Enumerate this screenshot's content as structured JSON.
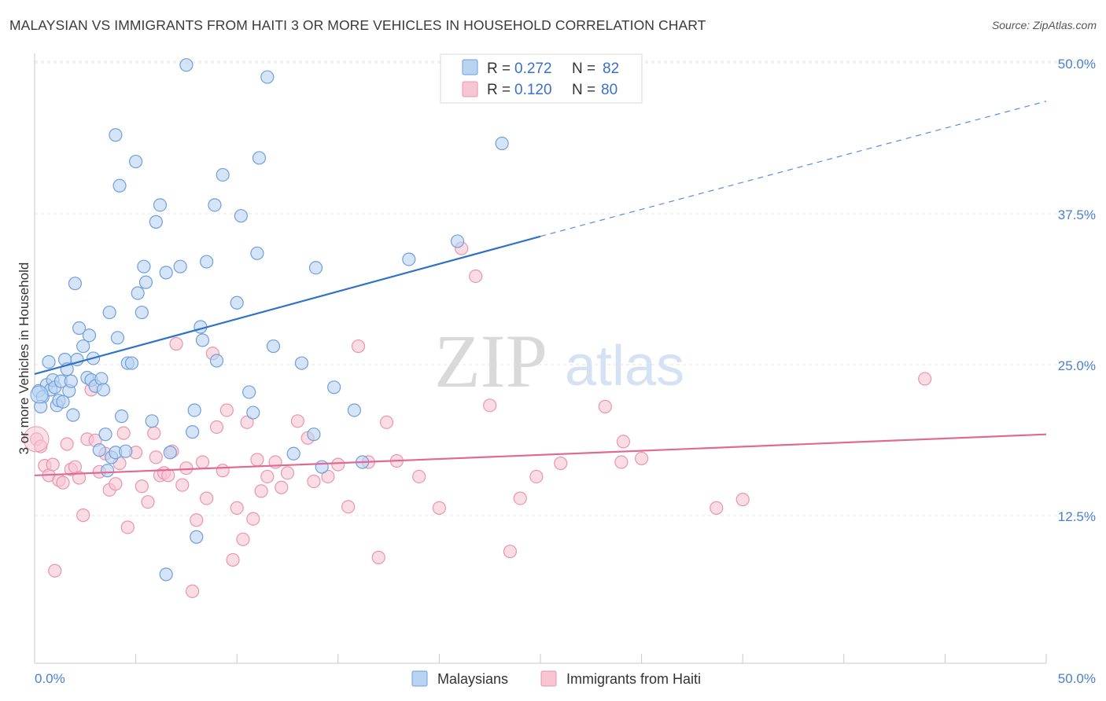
{
  "title": "MALAYSIAN VS IMMIGRANTS FROM HAITI 3 OR MORE VEHICLES IN HOUSEHOLD CORRELATION CHART",
  "source": "Source: ZipAtlas.com",
  "watermark": {
    "part1": "ZIP",
    "part2": "atlas"
  },
  "colors": {
    "blue_fill": "#b9d3f2",
    "blue_stroke": "#6f9fdc",
    "blue_line": "#2f72c9",
    "pink_fill": "#f7c5d4",
    "pink_stroke": "#e995ae",
    "pink_line": "#e06a94",
    "axis_text": "#4a7fd0",
    "grid": "#e3e3e3"
  },
  "legend": {
    "r_label": "R =",
    "n_label": "N =",
    "rows": [
      {
        "r": "0.272",
        "n": "82"
      },
      {
        "r": "0.120",
        "n": "80"
      }
    ]
  },
  "chart_data": {
    "type": "scatter",
    "title": "MALAYSIAN VS IMMIGRANTS FROM HAITI 3 OR MORE VEHICLES IN HOUSEHOLD CORRELATION CHART",
    "xlabel": "",
    "ylabel": "3 or more Vehicles in Household",
    "xlim": [
      0,
      50
    ],
    "ylim": [
      0,
      50
    ],
    "x_tick_labels": [
      "0.0%",
      "50.0%"
    ],
    "y_ticks": [
      12.5,
      25.0,
      37.5,
      50.0
    ],
    "y_tick_labels": [
      "12.5%",
      "25.0%",
      "37.5%",
      "50.0%"
    ],
    "grid": true,
    "legend_position": "top-center",
    "series": [
      {
        "name": "Malaysians",
        "r": 0.272,
        "n": 82,
        "trend": {
          "x0": 0,
          "y0": 23.9,
          "x1": 25,
          "y1": 35.3,
          "dashed_to_x": 50,
          "dashed_to_y": 46.5
        },
        "points": [
          [
            0.2,
            22.5
          ],
          [
            0.4,
            22.0
          ],
          [
            0.6,
            23.0
          ],
          [
            0.7,
            24.9
          ],
          [
            0.8,
            22.6
          ],
          [
            0.9,
            23.4
          ],
          [
            1.0,
            22.8
          ],
          [
            1.1,
            21.3
          ],
          [
            1.2,
            21.7
          ],
          [
            1.3,
            23.3
          ],
          [
            1.4,
            21.6
          ],
          [
            1.5,
            25.1
          ],
          [
            1.6,
            24.3
          ],
          [
            1.7,
            22.5
          ],
          [
            1.8,
            23.3
          ],
          [
            2.0,
            31.4
          ],
          [
            2.1,
            25.1
          ],
          [
            2.2,
            27.7
          ],
          [
            2.4,
            26.2
          ],
          [
            2.6,
            23.6
          ],
          [
            2.7,
            27.1
          ],
          [
            2.8,
            23.4
          ],
          [
            2.9,
            25.2
          ],
          [
            3.0,
            22.9
          ],
          [
            3.2,
            17.6
          ],
          [
            3.3,
            23.5
          ],
          [
            3.4,
            22.6
          ],
          [
            3.5,
            18.9
          ],
          [
            3.7,
            29.0
          ],
          [
            3.8,
            17.0
          ],
          [
            4.0,
            17.4
          ],
          [
            4.0,
            43.7
          ],
          [
            4.1,
            26.9
          ],
          [
            4.2,
            39.5
          ],
          [
            4.3,
            20.4
          ],
          [
            4.5,
            17.5
          ],
          [
            4.6,
            24.8
          ],
          [
            4.8,
            24.8
          ],
          [
            5.0,
            41.5
          ],
          [
            5.1,
            30.6
          ],
          [
            5.3,
            29.0
          ],
          [
            5.4,
            32.8
          ],
          [
            5.5,
            31.5
          ],
          [
            5.8,
            20.0
          ],
          [
            6.0,
            36.5
          ],
          [
            6.2,
            37.9
          ],
          [
            6.5,
            32.3
          ],
          [
            6.5,
            7.3
          ],
          [
            6.7,
            17.4
          ],
          [
            7.2,
            32.8
          ],
          [
            7.5,
            49.5
          ],
          [
            7.8,
            19.1
          ],
          [
            7.9,
            20.9
          ],
          [
            8.0,
            10.4
          ],
          [
            8.2,
            27.8
          ],
          [
            8.3,
            26.7
          ],
          [
            8.5,
            33.2
          ],
          [
            8.9,
            37.9
          ],
          [
            9.0,
            25.0
          ],
          [
            9.3,
            40.4
          ],
          [
            10.0,
            29.8
          ],
          [
            10.2,
            37.0
          ],
          [
            10.6,
            22.4
          ],
          [
            10.8,
            20.7
          ],
          [
            11.0,
            33.9
          ],
          [
            11.1,
            41.8
          ],
          [
            11.5,
            48.5
          ],
          [
            11.8,
            26.2
          ],
          [
            13.2,
            24.8
          ],
          [
            13.8,
            18.9
          ],
          [
            13.9,
            32.7
          ],
          [
            14.2,
            16.2
          ],
          [
            14.8,
            22.8
          ],
          [
            15.8,
            20.9
          ],
          [
            16.2,
            16.6
          ],
          [
            18.5,
            33.4
          ],
          [
            20.9,
            34.9
          ],
          [
            23.1,
            43.0
          ],
          [
            0.3,
            21.2
          ],
          [
            1.9,
            20.5
          ],
          [
            3.6,
            15.9
          ],
          [
            12.8,
            17.3
          ]
        ]
      },
      {
        "name": "Immigrants from Haiti",
        "r": 0.12,
        "n": 80,
        "trend": {
          "x0": 0,
          "y0": 15.5,
          "x1": 50,
          "y1": 18.9
        },
        "points": [
          [
            0.1,
            18.5
          ],
          [
            0.3,
            17.9
          ],
          [
            0.5,
            16.3
          ],
          [
            0.7,
            15.5
          ],
          [
            0.9,
            16.4
          ],
          [
            1.0,
            7.6
          ],
          [
            1.2,
            15.1
          ],
          [
            1.4,
            14.9
          ],
          [
            1.6,
            18.1
          ],
          [
            1.8,
            16.0
          ],
          [
            2.0,
            16.2
          ],
          [
            2.2,
            15.3
          ],
          [
            2.4,
            12.2
          ],
          [
            2.6,
            18.5
          ],
          [
            2.8,
            22.6
          ],
          [
            3.0,
            18.4
          ],
          [
            3.2,
            15.8
          ],
          [
            3.5,
            17.3
          ],
          [
            3.7,
            14.3
          ],
          [
            4.0,
            14.8
          ],
          [
            4.2,
            16.5
          ],
          [
            4.4,
            19.0
          ],
          [
            4.6,
            11.2
          ],
          [
            5.0,
            17.4
          ],
          [
            5.3,
            14.6
          ],
          [
            5.6,
            13.3
          ],
          [
            5.9,
            19.0
          ],
          [
            6.0,
            17.0
          ],
          [
            6.2,
            15.5
          ],
          [
            6.4,
            15.7
          ],
          [
            6.6,
            15.5
          ],
          [
            6.8,
            17.5
          ],
          [
            7.0,
            26.4
          ],
          [
            7.3,
            14.7
          ],
          [
            7.5,
            16.1
          ],
          [
            7.8,
            5.9
          ],
          [
            8.0,
            11.8
          ],
          [
            8.3,
            16.6
          ],
          [
            8.5,
            13.6
          ],
          [
            8.8,
            25.6
          ],
          [
            9.0,
            19.5
          ],
          [
            9.3,
            15.9
          ],
          [
            9.5,
            20.9
          ],
          [
            9.8,
            8.5
          ],
          [
            10.0,
            12.8
          ],
          [
            10.3,
            10.2
          ],
          [
            10.5,
            19.9
          ],
          [
            10.8,
            11.9
          ],
          [
            11.0,
            16.8
          ],
          [
            11.2,
            14.2
          ],
          [
            11.5,
            15.4
          ],
          [
            11.9,
            16.6
          ],
          [
            12.2,
            14.5
          ],
          [
            12.5,
            15.7
          ],
          [
            13.0,
            20.0
          ],
          [
            13.5,
            18.6
          ],
          [
            13.8,
            15.0
          ],
          [
            14.5,
            15.4
          ],
          [
            15.0,
            16.4
          ],
          [
            15.5,
            12.9
          ],
          [
            16.0,
            26.2
          ],
          [
            16.5,
            16.6
          ],
          [
            17.0,
            8.7
          ],
          [
            17.4,
            19.9
          ],
          [
            17.9,
            16.7
          ],
          [
            19.0,
            15.4
          ],
          [
            20.0,
            12.8
          ],
          [
            21.1,
            34.3
          ],
          [
            21.8,
            32.0
          ],
          [
            22.5,
            21.3
          ],
          [
            23.5,
            9.2
          ],
          [
            24.0,
            13.6
          ],
          [
            24.8,
            15.4
          ],
          [
            26.0,
            16.5
          ],
          [
            28.2,
            21.2
          ],
          [
            29.0,
            16.6
          ],
          [
            29.1,
            18.3
          ],
          [
            30.0,
            16.9
          ],
          [
            33.7,
            12.8
          ],
          [
            35.0,
            13.5
          ],
          [
            44.0,
            23.5
          ]
        ]
      }
    ]
  },
  "bottom_legend": [
    {
      "label": "Malaysians"
    },
    {
      "label": "Immigrants from Haiti"
    }
  ]
}
